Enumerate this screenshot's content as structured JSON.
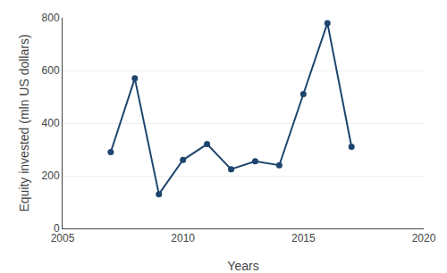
{
  "chart_data": {
    "type": "line",
    "x": [
      2007,
      2008,
      2009,
      2010,
      2011,
      2012,
      2013,
      2014,
      2015,
      2016,
      2017
    ],
    "values": [
      290,
      570,
      130,
      260,
      320,
      225,
      255,
      240,
      510,
      780,
      310
    ],
    "color": "#1e456e",
    "marker": "circle",
    "xlabel": "Years",
    "ylabel": "Equity invested (mln US dollars)",
    "xlim": [
      2005,
      2020
    ],
    "ylim": [
      0,
      800
    ],
    "xticks": [
      2005,
      2010,
      2015,
      2020
    ],
    "yticks": [
      0,
      200,
      400,
      600,
      800
    ],
    "grid": true
  }
}
